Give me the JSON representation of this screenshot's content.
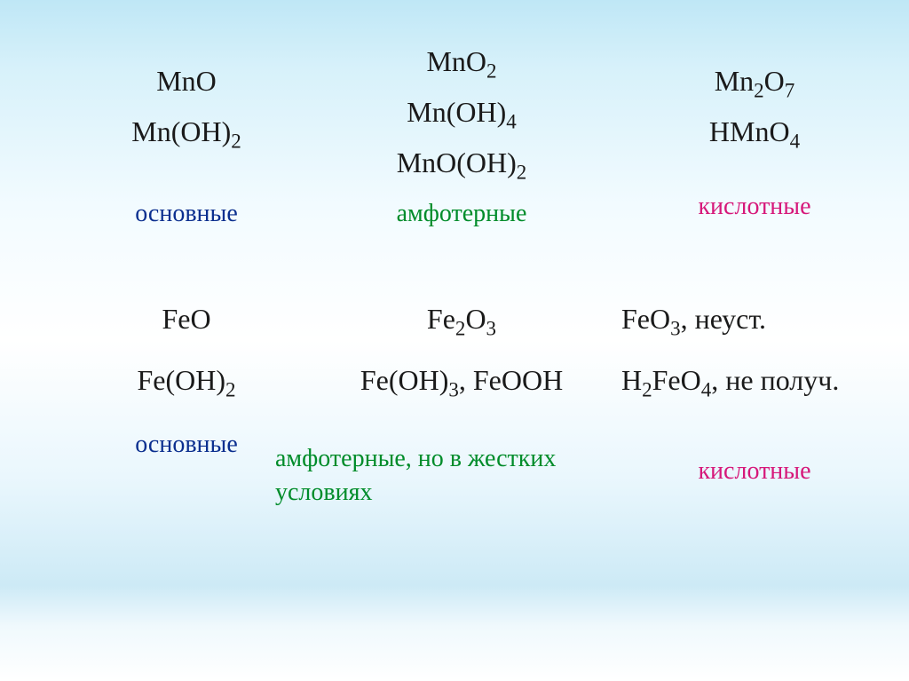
{
  "theme": {
    "text_color": "#1a1a1a",
    "label_colors": {
      "basic": "#0b2f8f",
      "amphoteric": "#008c2a",
      "acidic": "#d6187a"
    },
    "formula_fontsize_pt": 24,
    "label_fontsize_pt": 21,
    "background_gradient": [
      "#bfe7f6",
      "#d7f1fa",
      "#f2fbff",
      "#ffffff",
      "#eaf7fd",
      "#cdeaf6",
      "#f0f9fd",
      "#ffffff"
    ]
  },
  "row_mn": {
    "col1": {
      "formulas": [
        "MnO",
        "Mn(OH)2"
      ],
      "formulas_html": [
        "MnO",
        "Mn(OH)<sub>2</sub>"
      ],
      "label": "основные",
      "label_color_key": "basic"
    },
    "col2": {
      "formulas": [
        "MnO2",
        "Mn(OH)4",
        "MnO(OH)2"
      ],
      "formulas_html": [
        "MnO<sub>2</sub>",
        "Mn(OH)<sub>4</sub>",
        "MnO(OH)<sub>2</sub>"
      ],
      "label": "амфотерные",
      "label_color_key": "amphoteric"
    },
    "col3": {
      "formulas": [
        "Mn2O7",
        "HMnO4"
      ],
      "formulas_html": [
        "Mn<sub>2</sub>O<sub>7</sub>",
        "HMnO<sub>4</sub>"
      ],
      "label": "кислотные",
      "label_color_key": "acidic"
    }
  },
  "row_fe": {
    "col1": {
      "formulas": [
        "FeO",
        "Fe(OH)2"
      ],
      "formulas_html": [
        "FeO",
        "Fe(OH)<sub>2</sub>"
      ],
      "label": "основные",
      "label_color_key": "basic"
    },
    "col2": {
      "formulas": [
        "Fe2O3",
        "Fe(OH)3, FeOOH"
      ],
      "formulas_html": [
        "Fe<sub>2</sub>O<sub>3</sub>",
        "Fe(OH)<sub>3</sub>, FeOOH"
      ],
      "label": "амфотерные, но в жестких условиях",
      "label_color_key": "amphoteric"
    },
    "col3": {
      "formulas": [
        "FeO3, неуст.",
        "H2FeO4, не получ."
      ],
      "formulas_html": [
        "FeO<sub>3</sub>, неуст.",
        "H<sub>2</sub>FeO<sub>4</sub>, не получ."
      ],
      "label": "кислотные",
      "label_color_key": "acidic"
    }
  }
}
